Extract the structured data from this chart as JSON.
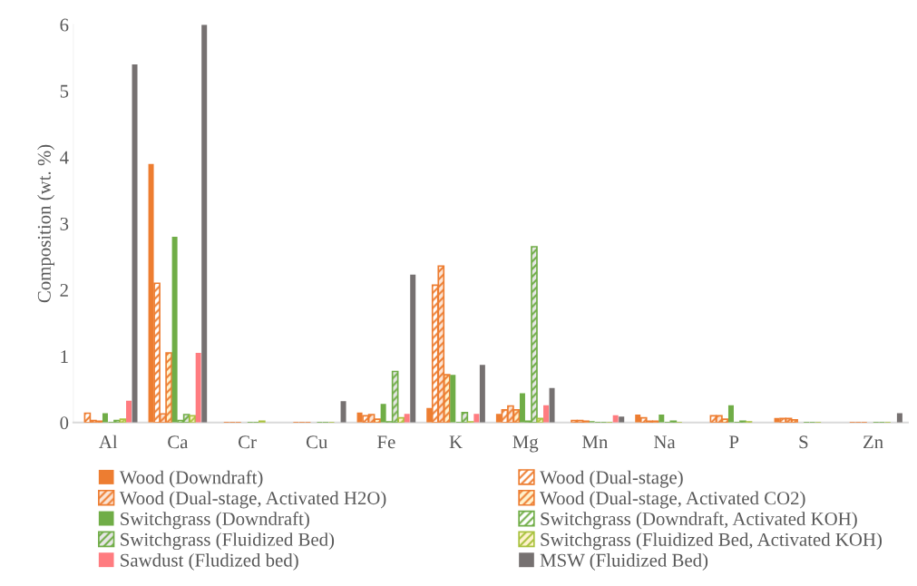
{
  "chart_data": {
    "type": "bar",
    "ylabel": "Composition (wt. %)",
    "categories": [
      "Al",
      "Ca",
      "Cr",
      "Cu",
      "Fe",
      "K",
      "Mg",
      "Mn",
      "Na",
      "P",
      "S",
      "Zn"
    ],
    "series": [
      {
        "name": "Wood (Downdraft)",
        "color": "#ed7d31",
        "values": [
          null,
          3.9,
          0,
          0,
          0.15,
          0.22,
          0.13,
          null,
          0.12,
          null,
          0.07,
          0
        ]
      },
      {
        "name": "Wood (Dual-stage)",
        "color": "#ed7d31",
        "values": [
          0.14,
          2.1,
          0,
          0,
          0.1,
          2.07,
          0.19,
          0.03,
          0.07,
          0.1,
          0.06,
          0
        ]
      },
      {
        "name": "Wood (Dual-stage, Activated H2O)",
        "color": "#ed7d31",
        "values": [
          0.03,
          0.13,
          0,
          0,
          0.12,
          2.36,
          0.25,
          0.03,
          0.02,
          0.1,
          0.06,
          0
        ]
      },
      {
        "name": "Wood (Dual-stage, Activated CO2)",
        "color": "#ed7d31",
        "values": [
          0.02,
          1.05,
          0,
          0,
          0.05,
          0.72,
          0.19,
          0.02,
          0.02,
          0.05,
          0.04,
          0
        ]
      },
      {
        "name": "Switchgrass (Downdraft)",
        "color": "#70ad47",
        "values": [
          0.14,
          2.8,
          0,
          0,
          0.28,
          0.72,
          0.44,
          0.02,
          0.12,
          0.26,
          null,
          0
        ]
      },
      {
        "name": "Switchgrass (Downdraft, Activated KOH)",
        "color": "#70ad47",
        "values": [
          0,
          0.03,
          0,
          0,
          0.01,
          0,
          0.02,
          0,
          0,
          0,
          0,
          0
        ]
      },
      {
        "name": "Switchgrass (Fluidized Bed)",
        "color": "#70ad47",
        "values": [
          0.03,
          0.12,
          0,
          0,
          0.77,
          0.15,
          2.65,
          0,
          0.02,
          0.02,
          0,
          0
        ]
      },
      {
        "name": "Switchgrass (Fluidized Bed, Activated KOH)",
        "color": "#a9c23f",
        "values": [
          0.05,
          0.1,
          0.02,
          0,
          0.07,
          0.01,
          0.06,
          0,
          0,
          0.01,
          0,
          0
        ]
      },
      {
        "name": "Sawdust (Fludized bed)",
        "color": "#ff7c80",
        "values": [
          0.33,
          1.05,
          0,
          0,
          0.13,
          0.13,
          0.26,
          0.11,
          0,
          0,
          0,
          0
        ]
      },
      {
        "name": "MSW (Fluidized Bed)",
        "color": "#767171",
        "values": [
          5.4,
          6.0,
          0,
          0.32,
          2.23,
          0.87,
          0.52,
          0.09,
          0,
          0,
          0,
          0.14
        ]
      }
    ],
    "ylim": [
      0,
      6
    ],
    "yticks": [
      0,
      1,
      2,
      3,
      4,
      5,
      6
    ],
    "grid": false,
    "legend": "bottom"
  }
}
